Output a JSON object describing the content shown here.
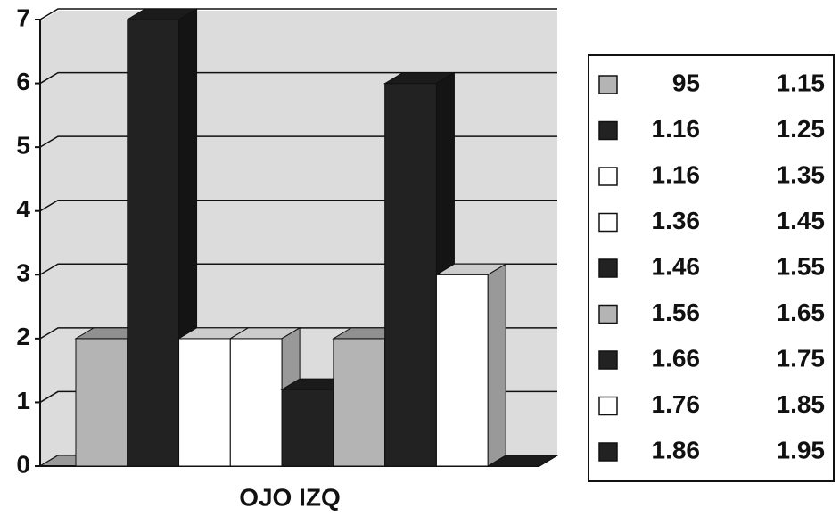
{
  "chart_data": {
    "type": "bar3d",
    "categories": [
      "OJO IZQ"
    ],
    "ylim": [
      0,
      7
    ],
    "yticks": [
      0,
      1,
      2,
      3,
      4,
      5,
      6,
      7
    ],
    "grid": true,
    "series": [
      {
        "name": [
          "95",
          "1.15"
        ],
        "color": "#b4b4b4",
        "values": [
          2
        ]
      },
      {
        "name": [
          "1.16",
          "1.25"
        ],
        "color": "#222222",
        "values": [
          7
        ]
      },
      {
        "name": [
          "1.16",
          "1.35"
        ],
        "color": "#ffffff",
        "values": [
          2
        ]
      },
      {
        "name": [
          "1.36",
          "1.45"
        ],
        "color": "#ffffff",
        "values": [
          2
        ]
      },
      {
        "name": [
          "1.46",
          "1.55"
        ],
        "color": "#222222",
        "values": [
          1.2
        ]
      },
      {
        "name": [
          "1.56",
          "1.65"
        ],
        "color": "#b4b4b4",
        "values": [
          2
        ]
      },
      {
        "name": [
          "1.66",
          "1.75"
        ],
        "color": "#222222",
        "values": [
          6
        ]
      },
      {
        "name": [
          "1.76",
          "1.85"
        ],
        "color": "#ffffff",
        "values": [
          3
        ]
      },
      {
        "name": [
          "1.86",
          "1.95"
        ],
        "color": "#222222",
        "values": [
          0
        ]
      }
    ]
  }
}
